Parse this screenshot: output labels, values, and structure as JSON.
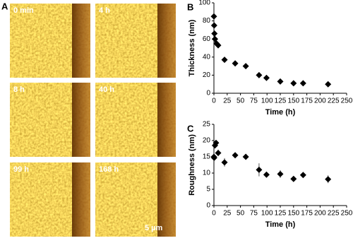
{
  "figure": {
    "panel_label": "A",
    "images": [
      "0 min",
      "4 h",
      "8 h",
      "40 h",
      "99 h",
      "168 h"
    ],
    "scale_bar": "5 µm"
  },
  "chart_data": [
    {
      "type": "scatter",
      "panel_label": "B",
      "x_label": "Time (h)",
      "y_label": "Thickness (nm)",
      "x": [
        0,
        0.5,
        1,
        2,
        5,
        8,
        20,
        40,
        60,
        85,
        99,
        125,
        150,
        168,
        215
      ],
      "values": [
        85,
        75,
        66,
        60,
        55,
        53,
        37,
        33,
        30,
        20,
        17,
        13,
        11,
        11,
        10
      ],
      "errors": [
        2,
        2,
        2,
        2,
        2,
        2,
        3,
        2,
        2,
        2,
        2,
        2,
        2,
        2,
        2
      ],
      "color": "#000000",
      "xlim": [
        0,
        250
      ],
      "xticks": [
        0,
        25,
        50,
        75,
        100,
        125,
        150,
        175,
        200,
        225,
        250
      ],
      "ylim": [
        0,
        100
      ],
      "yticks": [
        0,
        20,
        40,
        60,
        80,
        100
      ]
    },
    {
      "type": "scatter",
      "panel_label": "C",
      "x_label": "Time (h)",
      "y_label": "Roughness (nm)",
      "x": [
        0,
        0.5,
        2,
        4,
        8,
        20,
        40,
        60,
        85,
        99,
        125,
        150,
        168,
        215
      ],
      "values": [
        15,
        14.7,
        18.5,
        19.3,
        16.2,
        13.3,
        15.5,
        15,
        11,
        9.5,
        9.7,
        8.2,
        9.4,
        8.1
      ],
      "errors": [
        0.8,
        0.5,
        0.5,
        0.5,
        1,
        1.3,
        0.8,
        0.5,
        2,
        0.5,
        1.2,
        0.5,
        0.5,
        1.2
      ],
      "color": "#000000",
      "xlim": [
        0,
        250
      ],
      "xticks": [
        0,
        25,
        50,
        75,
        100,
        125,
        150,
        175,
        200,
        225,
        250
      ],
      "ylim": [
        0,
        25
      ],
      "yticks": [
        0,
        5,
        10,
        15,
        20,
        25
      ]
    }
  ]
}
